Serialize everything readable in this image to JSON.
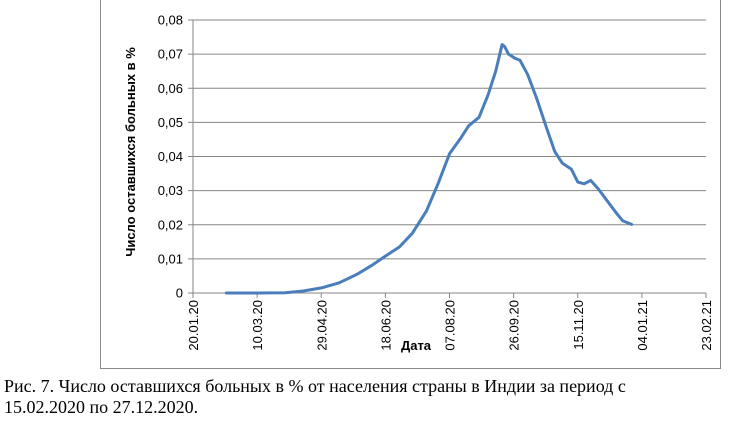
{
  "caption": {
    "line1": "Рис. 7. Число оставшихся больных в % от населения страны в Индии за период с",
    "line2": "15.02.2020 по 27.12.2020."
  },
  "colors": {
    "line": "#4a7ebb",
    "grid": "#868686",
    "axis": "#868686"
  },
  "chart_data": {
    "type": "line",
    "title": "",
    "xlabel": "Дата",
    "ylabel": "Число оставшихся больных в %",
    "ylim": [
      0,
      0.08
    ],
    "xlim": [
      "2020-01-20",
      "2021-02-23"
    ],
    "grid": "horizontal",
    "legend": "none",
    "y_ticks": [
      "0",
      "0,01",
      "0,02",
      "0,03",
      "0,04",
      "0,05",
      "0,06",
      "0,07",
      "0,08"
    ],
    "x_ticks": [
      {
        "label": "20.01.20",
        "date": "2020-01-20"
      },
      {
        "label": "10.03.20",
        "date": "2020-03-10"
      },
      {
        "label": "29.04.20",
        "date": "2020-04-29"
      },
      {
        "label": "18.06.20",
        "date": "2020-06-18"
      },
      {
        "label": "07.08.20",
        "date": "2020-08-07"
      },
      {
        "label": "26.09.20",
        "date": "2020-09-26"
      },
      {
        "label": "15.11.20",
        "date": "2020-11-15"
      },
      {
        "label": "04.01.21",
        "date": "2021-01-04"
      },
      {
        "label": "23.02.21",
        "date": "2021-02-23"
      }
    ],
    "series": [
      {
        "values": [
          {
            "x": "2020-02-15",
            "y": 0.0
          },
          {
            "x": "2020-03-10",
            "y": 0.0
          },
          {
            "x": "2020-04-01",
            "y": 0.0001
          },
          {
            "x": "2020-04-15",
            "y": 0.0006
          },
          {
            "x": "2020-04-29",
            "y": 0.0015
          },
          {
            "x": "2020-05-13",
            "y": 0.003
          },
          {
            "x": "2020-05-27",
            "y": 0.0055
          },
          {
            "x": "2020-06-07",
            "y": 0.008
          },
          {
            "x": "2020-06-18",
            "y": 0.0108
          },
          {
            "x": "2020-06-29",
            "y": 0.0135
          },
          {
            "x": "2020-07-09",
            "y": 0.0175
          },
          {
            "x": "2020-07-20",
            "y": 0.024
          },
          {
            "x": "2020-07-29",
            "y": 0.032
          },
          {
            "x": "2020-08-07",
            "y": 0.0408
          },
          {
            "x": "2020-08-16",
            "y": 0.0455
          },
          {
            "x": "2020-08-22",
            "y": 0.049
          },
          {
            "x": "2020-08-30",
            "y": 0.0515
          },
          {
            "x": "2020-09-06",
            "y": 0.058
          },
          {
            "x": "2020-09-12",
            "y": 0.065
          },
          {
            "x": "2020-09-17",
            "y": 0.0728
          },
          {
            "x": "2020-09-19",
            "y": 0.0722
          },
          {
            "x": "2020-09-22",
            "y": 0.07
          },
          {
            "x": "2020-09-27",
            "y": 0.0688
          },
          {
            "x": "2020-10-01",
            "y": 0.0682
          },
          {
            "x": "2020-10-07",
            "y": 0.064
          },
          {
            "x": "2020-10-14",
            "y": 0.057
          },
          {
            "x": "2020-10-22",
            "y": 0.048
          },
          {
            "x": "2020-10-28",
            "y": 0.0415
          },
          {
            "x": "2020-11-03",
            "y": 0.038
          },
          {
            "x": "2020-11-10",
            "y": 0.0363
          },
          {
            "x": "2020-11-15",
            "y": 0.0325
          },
          {
            "x": "2020-11-20",
            "y": 0.032
          },
          {
            "x": "2020-11-25",
            "y": 0.033
          },
          {
            "x": "2020-12-01",
            "y": 0.0305
          },
          {
            "x": "2020-12-08",
            "y": 0.027
          },
          {
            "x": "2020-12-15",
            "y": 0.0235
          },
          {
            "x": "2020-12-20",
            "y": 0.0212
          },
          {
            "x": "2020-12-27",
            "y": 0.0201
          }
        ]
      }
    ]
  }
}
